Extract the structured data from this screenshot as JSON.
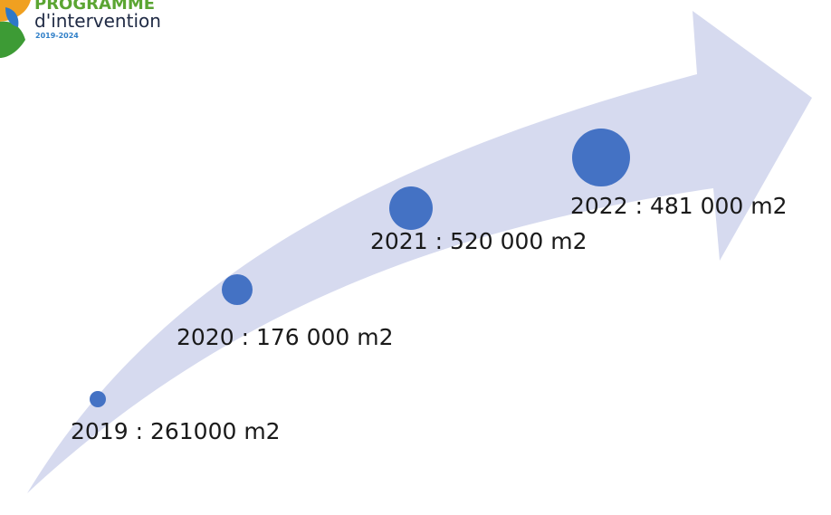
{
  "logo": {
    "title": "PROGRAMME",
    "subtitle": "d'intervention",
    "years": "2019-2024",
    "colors": {
      "title": "#5aa532",
      "subtitle": "#1f2a44",
      "years": "#2f7fc8",
      "leaf_orange": "#f0a020",
      "leaf_green": "#3d9b35",
      "leaf_blue": "#2e78c7"
    }
  },
  "arrow": {
    "color": "#d6daef"
  },
  "milestones": [
    {
      "label": "2019 : 261000 m2",
      "year": 2019,
      "value_m2": 261000,
      "marker_color": "#4472c4"
    },
    {
      "label": "2020 : 176 000 m2",
      "year": 2020,
      "value_m2": 176000,
      "marker_color": "#4472c4"
    },
    {
      "label": "2021 : 520 000 m2",
      "year": 2021,
      "value_m2": 520000,
      "marker_color": "#4472c4"
    },
    {
      "label": "2022 : 481 000 m2",
      "year": 2022,
      "value_m2": 481000,
      "marker_color": "#4472c4"
    }
  ]
}
